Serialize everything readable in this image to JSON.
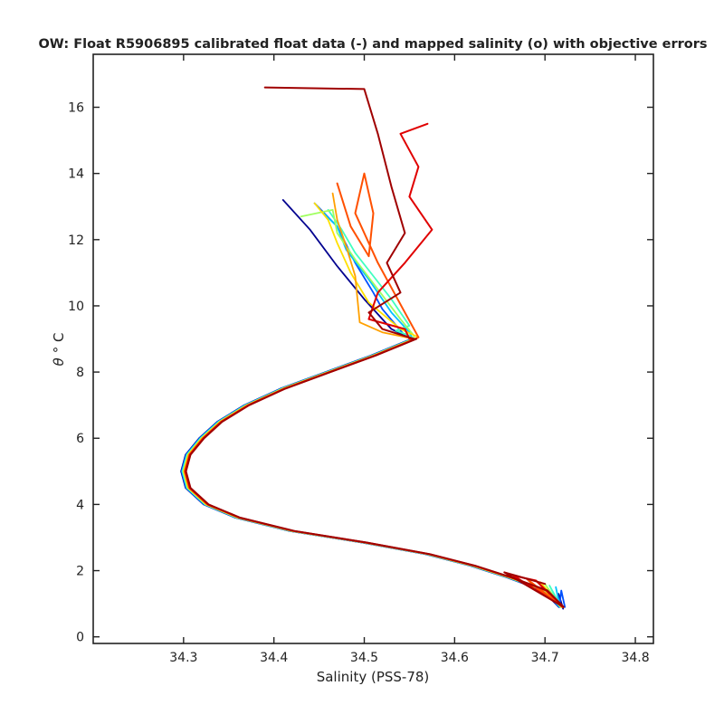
{
  "chart_data": {
    "type": "line",
    "title": "OW: Float R5906895 calibrated float data (-) and mapped salinity (o) with objective errors",
    "xlabel": "Salinity (PSS-78)",
    "ylabel_symbol": "θ",
    "ylabel_unit": "° C",
    "xlim": [
      34.2,
      34.82
    ],
    "ylim": [
      -0.2,
      17.6
    ],
    "xticks": [
      34.3,
      34.4,
      34.5,
      34.6,
      34.7,
      34.8
    ],
    "xtick_labels": [
      "34.3",
      "34.4",
      "34.5",
      "34.6",
      "34.7",
      "34.8"
    ],
    "yticks": [
      0,
      2,
      4,
      6,
      8,
      10,
      12,
      14,
      16
    ],
    "ytick_labels": [
      "0",
      "2",
      "4",
      "6",
      "8",
      "10",
      "12",
      "14",
      "16"
    ],
    "colormap": [
      "#00008f",
      "#0050ff",
      "#00c0ff",
      "#40ffbf",
      "#a0ff60",
      "#ffe000",
      "#ffa000",
      "#ff5000",
      "#e00000",
      "#a00000"
    ],
    "deep_profile": {
      "x": [
        34.555,
        34.51,
        34.46,
        34.41,
        34.37,
        34.34,
        34.32,
        34.305,
        34.3,
        34.305,
        34.325,
        34.36,
        34.42,
        34.5,
        34.57,
        34.62,
        34.66,
        34.7,
        34.718
      ],
      "y": [
        9.0,
        8.5,
        8.0,
        7.5,
        7.0,
        6.5,
        6.0,
        5.5,
        5.0,
        4.5,
        4.0,
        3.6,
        3.2,
        2.85,
        2.5,
        2.15,
        1.8,
        1.4,
        0.9
      ]
    },
    "series": [
      {
        "color": "#00008f",
        "upper": {
          "x": [
            34.41,
            34.44,
            34.47,
            34.5,
            34.53
          ],
          "y": [
            13.2,
            12.3,
            11.2,
            10.2,
            9.3
          ]
        },
        "tail": {
          "x": [
            34.715,
            34.72
          ],
          "y": [
            1.3,
            0.85
          ]
        }
      },
      {
        "color": "#0050ff",
        "upper": {
          "x": [
            34.445,
            34.47,
            34.49,
            34.51,
            34.52,
            34.545
          ],
          "y": [
            13.1,
            12.4,
            11.3,
            10.4,
            9.9,
            9.1
          ]
        },
        "tail": {
          "x": [
            34.718,
            34.722
          ],
          "y": [
            1.4,
            0.9
          ]
        }
      },
      {
        "color": "#00c0ff",
        "upper": {
          "x": [
            34.455,
            34.47,
            34.48,
            34.505,
            34.53,
            34.55
          ],
          "y": [
            12.8,
            12.4,
            11.7,
            10.8,
            9.8,
            9.2
          ]
        },
        "tail": {
          "x": [
            34.712,
            34.716
          ],
          "y": [
            1.5,
            1.0
          ]
        }
      },
      {
        "color": "#40ffbf",
        "upper": {
          "x": [
            34.46,
            34.475,
            34.49,
            34.51,
            34.53,
            34.55,
            34.535,
            34.55
          ],
          "y": [
            12.9,
            12.3,
            11.6,
            10.9,
            10.2,
            9.4,
            9.25,
            9.1
          ]
        },
        "tail": {
          "x": [
            34.705,
            34.715
          ],
          "y": [
            1.55,
            1.05
          ]
        }
      },
      {
        "color": "#a0ff60",
        "upper": {
          "x": [
            34.43,
            34.465,
            34.47,
            34.49,
            34.515,
            34.54,
            34.555
          ],
          "y": [
            12.7,
            12.9,
            12.2,
            11.4,
            10.5,
            9.6,
            9.1
          ]
        },
        "tail": {
          "x": [
            34.7,
            34.712
          ],
          "y": [
            1.6,
            1.1
          ]
        }
      },
      {
        "color": "#ffe000",
        "upper": {
          "x": [
            34.445,
            34.46,
            34.47,
            34.485,
            34.505,
            34.54,
            34.56
          ],
          "y": [
            13.1,
            12.6,
            11.9,
            11.0,
            10.1,
            9.3,
            9.05
          ]
        },
        "tail": {
          "x": [
            34.695,
            34.71
          ],
          "y": [
            1.65,
            1.15
          ]
        }
      },
      {
        "color": "#ffa000",
        "upper": {
          "x": [
            34.465,
            34.47,
            34.48,
            34.49,
            34.495,
            34.52,
            34.555
          ],
          "y": [
            13.4,
            12.6,
            11.8,
            10.9,
            9.5,
            9.2,
            9.0
          ]
        },
        "tail": {
          "x": [
            34.69,
            34.708
          ],
          "y": [
            1.7,
            1.2
          ]
        }
      },
      {
        "color": "#ff5000",
        "upper": {
          "x": [
            34.47,
            34.485,
            34.505,
            34.51,
            34.5,
            34.49,
            34.515,
            34.545,
            34.56
          ],
          "y": [
            13.7,
            12.4,
            11.5,
            12.8,
            14.0,
            12.8,
            11.3,
            9.8,
            9.05
          ]
        },
        "tail": {
          "x": [
            34.68,
            34.7
          ],
          "y": [
            1.75,
            1.25
          ]
        }
      },
      {
        "color": "#e00000",
        "upper": {
          "x": [
            34.57,
            34.54,
            34.56,
            34.55,
            34.575,
            34.545,
            34.515,
            34.505,
            34.545,
            34.55
          ],
          "y": [
            15.5,
            15.2,
            14.2,
            13.3,
            12.3,
            11.3,
            10.4,
            9.6,
            9.3,
            9.0
          ]
        },
        "tail": {
          "x": [
            34.665,
            34.69,
            34.705
          ],
          "y": [
            1.85,
            1.7,
            1.3
          ]
        }
      },
      {
        "color": "#a00000",
        "upper": {
          "x": [
            34.39,
            34.5,
            34.515,
            34.53,
            34.545,
            34.525,
            34.54,
            34.505,
            34.52,
            34.555
          ],
          "y": [
            16.6,
            16.55,
            15.2,
            13.6,
            12.2,
            11.3,
            10.4,
            9.8,
            9.3,
            9.0
          ]
        },
        "tail": {
          "x": [
            34.655,
            34.7
          ],
          "y": [
            1.95,
            1.6
          ]
        }
      }
    ]
  }
}
